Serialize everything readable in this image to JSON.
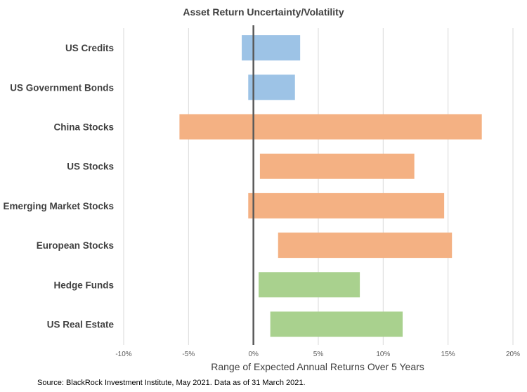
{
  "chart_data": {
    "type": "bar",
    "subtype": "floating-range-horizontal",
    "title": "Asset Return Uncertainty/Volatility",
    "xlabel": "Range of Expected Annual Returns Over 5 Years",
    "ylabel": "",
    "xlim": [
      -10,
      20
    ],
    "xticks": [
      -10,
      -5,
      0,
      5,
      10,
      15,
      20
    ],
    "xtick_labels": [
      "-10%",
      "-5%",
      "0%",
      "5%",
      "10%",
      "15%",
      "20%"
    ],
    "grid": "vertical",
    "legend": "none",
    "categories": [
      "US Credits",
      "US Government Bonds",
      "China Stocks",
      "US Stocks",
      "Emerging Market Stocks",
      "European Stocks",
      "Hedge Funds",
      "US Real Estate"
    ],
    "ranges": [
      {
        "low": -0.9,
        "high": 3.6,
        "color": "#9dc3e6"
      },
      {
        "low": -0.4,
        "high": 3.2,
        "color": "#9dc3e6"
      },
      {
        "low": -5.7,
        "high": 17.6,
        "color": "#f4b183"
      },
      {
        "low": 0.5,
        "high": 12.4,
        "color": "#f4b183"
      },
      {
        "low": -0.4,
        "high": 14.7,
        "color": "#f4b183"
      },
      {
        "low": 1.9,
        "high": 15.3,
        "color": "#f4b183"
      },
      {
        "low": 0.4,
        "high": 8.2,
        "color": "#a9d18e"
      },
      {
        "low": 1.3,
        "high": 11.5,
        "color": "#a9d18e"
      }
    ]
  },
  "source_note": "Source: BlackRock Investment Institute, May 2021. Data as of 31 March 2021."
}
